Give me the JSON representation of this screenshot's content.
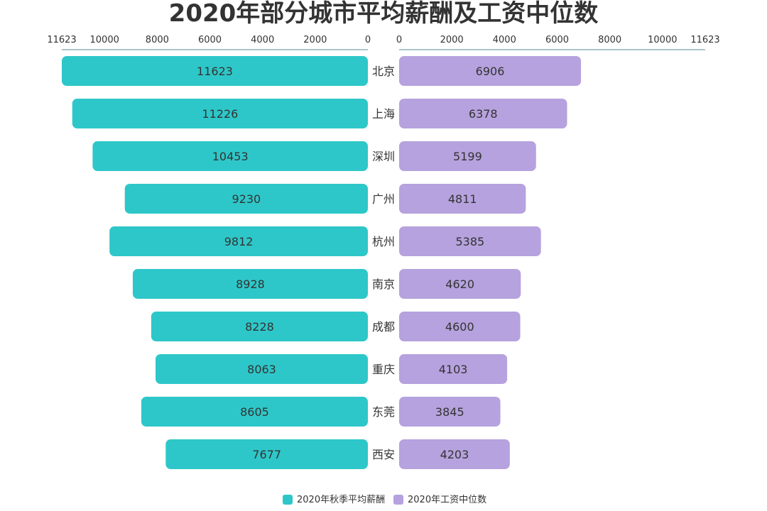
{
  "chart_data": {
    "type": "bar",
    "orientation": "horizontal-butterfly",
    "title": "2020年部分城市平均薪酬及工资中位数",
    "categories": [
      "北京",
      "上海",
      "深圳",
      "广州",
      "杭州",
      "南京",
      "成都",
      "重庆",
      "东莞",
      "西安"
    ],
    "series": [
      {
        "name": "2020年秋季平均薪酬",
        "color": "#2ec7c9",
        "side": "left",
        "values": [
          11623,
          11226,
          10453,
          9230,
          9812,
          8928,
          8228,
          8063,
          8605,
          7677
        ]
      },
      {
        "name": "2020年工资中位数",
        "color": "#b6a2de",
        "side": "right",
        "values": [
          6906,
          6378,
          5199,
          4811,
          5385,
          4620,
          4600,
          4103,
          3845,
          4203
        ]
      }
    ],
    "xlim": [
      0,
      11623
    ],
    "ticks": [
      "11623",
      "10000",
      "8000",
      "6000",
      "4000",
      "2000",
      "0"
    ],
    "tick_values": [
      11623,
      10000,
      8000,
      6000,
      4000,
      2000,
      0
    ],
    "axis_color": "#5b8a98",
    "legend_position": "bottom-center",
    "grid": false
  }
}
